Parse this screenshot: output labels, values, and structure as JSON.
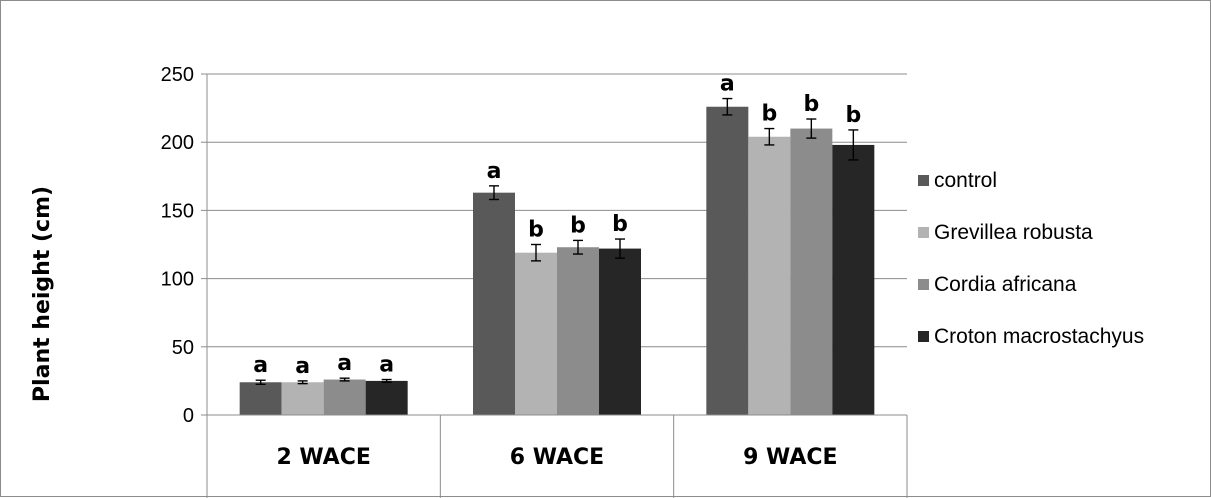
{
  "chart_data": {
    "type": "bar",
    "title": "",
    "xlabel": "",
    "ylabel": "Plant height (cm)",
    "ylim": [
      0,
      250
    ],
    "y_ticks": [
      0,
      50,
      100,
      150,
      200,
      250
    ],
    "grid": true,
    "legend_position": "right",
    "categories": [
      "2 WACE",
      "6 WACE",
      "9 WACE"
    ],
    "series": [
      {
        "name": "control",
        "color": "#595959",
        "values": [
          24,
          163,
          226
        ],
        "errors": [
          1.5,
          5,
          6
        ],
        "labels": [
          "a",
          "a",
          "a"
        ]
      },
      {
        "name": "Grevillea robusta",
        "color": "#b3b3b3",
        "values": [
          24,
          119,
          204
        ],
        "errors": [
          1,
          6,
          6
        ],
        "labels": [
          "a",
          "b",
          "b"
        ]
      },
      {
        "name": "Cordia africana",
        "color": "#8c8c8c",
        "values": [
          26,
          123,
          210
        ],
        "errors": [
          1,
          5,
          7
        ],
        "labels": [
          "a",
          "b",
          "b"
        ]
      },
      {
        "name": "Croton macrostachyus",
        "color": "#262626",
        "values": [
          25,
          122,
          198
        ],
        "errors": [
          1,
          7,
          11
        ],
        "labels": [
          "a",
          "b",
          "b"
        ]
      }
    ]
  }
}
